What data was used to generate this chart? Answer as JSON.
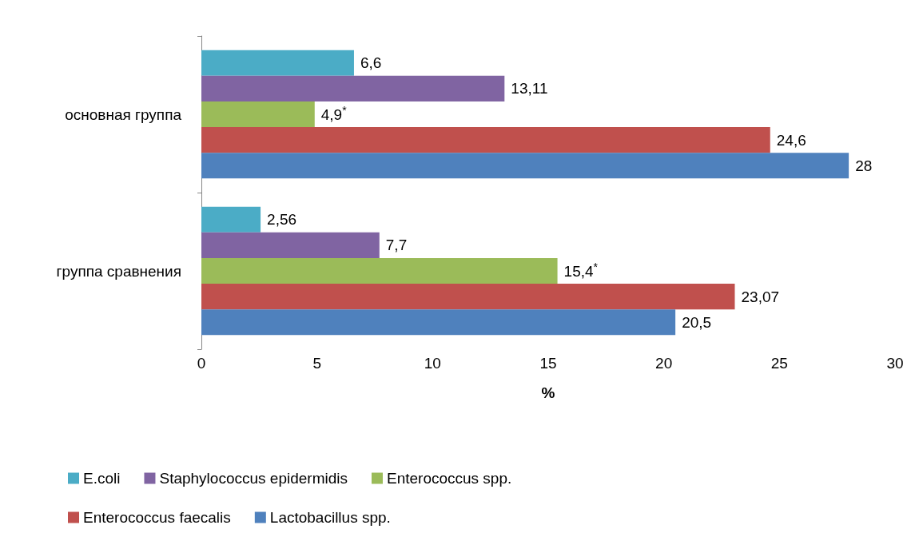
{
  "chart_data": {
    "type": "bar",
    "orientation": "horizontal",
    "xlabel": "%",
    "categories": [
      "основная группа",
      "группа сравнения"
    ],
    "series": [
      {
        "name": "E.coli",
        "color": "#4bacc6",
        "values": [
          6.6,
          2.56
        ],
        "value_labels": [
          "6,6",
          "2,56"
        ]
      },
      {
        "name": "Staphylococcus epidermidis",
        "color": "#8064a2",
        "values": [
          13.11,
          7.7
        ],
        "value_labels": [
          "13,11",
          "7,7"
        ]
      },
      {
        "name": "Enterococcus spp.",
        "color": "#9bbb59",
        "values": [
          4.9,
          15.4
        ],
        "value_labels": [
          "4,9$^{*}$",
          "15,4$^{*}$"
        ]
      },
      {
        "name": "Enterococcus faecalis",
        "color": "#c0504d",
        "values": [
          24.6,
          23.07
        ],
        "value_labels": [
          "24,6",
          "23,07"
        ]
      },
      {
        "name": "Lactobacillus spp.",
        "color": "#4f81bd",
        "values": [
          28,
          20.5
        ],
        "value_labels": [
          "28",
          "20,5"
        ]
      }
    ],
    "xlim": [
      0,
      30
    ],
    "xticks": [
      0,
      5,
      10,
      15,
      20,
      25,
      30
    ],
    "grid": false,
    "legend": "bottom"
  }
}
